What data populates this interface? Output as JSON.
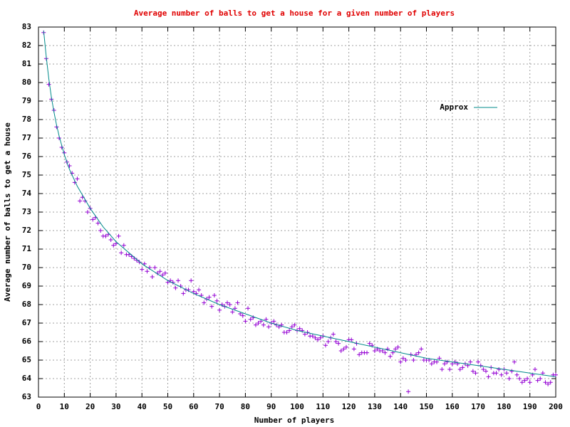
{
  "chart_data": {
    "type": "scatter",
    "title": "Average number of balls to get a house for a given number of players",
    "x_label": "Number of players",
    "y_label": "Average number of balls to get a house",
    "xlim": [
      0,
      200
    ],
    "ylim": [
      63,
      83
    ],
    "xticks": [
      0,
      10,
      20,
      30,
      40,
      50,
      60,
      70,
      80,
      90,
      100,
      110,
      120,
      130,
      140,
      150,
      160,
      170,
      180,
      190,
      200
    ],
    "yticks": [
      63,
      64,
      65,
      66,
      67,
      68,
      69,
      70,
      71,
      72,
      73,
      74,
      75,
      76,
      77,
      78,
      79,
      80,
      81,
      82,
      83
    ],
    "grid": true,
    "legend_position": "upper right",
    "points": {
      "color": "#9400d3",
      "x": [
        2,
        3,
        4,
        5,
        6,
        7,
        8,
        9,
        10,
        11,
        12,
        13,
        14,
        15,
        16,
        17,
        18,
        19,
        20,
        21,
        22,
        23,
        24,
        25,
        26,
        27,
        28,
        29,
        30,
        31,
        32,
        33,
        34,
        35,
        36,
        37,
        38,
        39,
        40,
        41,
        42,
        43,
        44,
        45,
        46,
        47,
        48,
        49,
        50,
        51,
        52,
        53,
        54,
        55,
        56,
        57,
        58,
        59,
        60,
        61,
        62,
        63,
        64,
        65,
        66,
        67,
        68,
        69,
        70,
        71,
        72,
        73,
        74,
        75,
        76,
        77,
        78,
        79,
        80,
        81,
        82,
        83,
        84,
        85,
        86,
        87,
        88,
        89,
        90,
        91,
        92,
        93,
        94,
        95,
        96,
        97,
        98,
        99,
        100,
        101,
        102,
        103,
        104,
        105,
        106,
        107,
        108,
        109,
        110,
        111,
        112,
        113,
        114,
        115,
        116,
        117,
        118,
        119,
        120,
        121,
        122,
        123,
        124,
        125,
        126,
        127,
        128,
        129,
        130,
        131,
        132,
        133,
        134,
        135,
        136,
        137,
        138,
        139,
        140,
        141,
        142,
        143,
        144,
        145,
        146,
        147,
        148,
        149,
        150,
        151,
        152,
        153,
        154,
        155,
        156,
        157,
        158,
        159,
        160,
        161,
        162,
        163,
        164,
        165,
        166,
        167,
        168,
        169,
        170,
        171,
        172,
        173,
        174,
        175,
        176,
        177,
        178,
        179,
        180,
        181,
        182,
        183,
        184,
        185,
        186,
        187,
        188,
        189,
        190,
        191,
        192,
        193,
        194,
        195,
        196,
        197,
        198,
        199,
        200
      ],
      "values": [
        82.7,
        81.3,
        79.9,
        79.1,
        78.5,
        77.6,
        77.0,
        76.5,
        76.2,
        75.7,
        75.5,
        75.1,
        74.6,
        74.8,
        73.6,
        73.8,
        73.6,
        73.0,
        73.2,
        72.6,
        72.7,
        72.4,
        72.0,
        71.7,
        71.7,
        71.8,
        71.5,
        71.2,
        71.3,
        71.7,
        70.8,
        71.2,
        70.7,
        70.7,
        70.6,
        70.5,
        70.4,
        70.3,
        69.9,
        70.2,
        69.8,
        70.0,
        69.5,
        70.0,
        69.7,
        69.8,
        69.6,
        69.7,
        69.2,
        69.3,
        69.2,
        68.9,
        69.3,
        69.0,
        68.6,
        68.8,
        68.8,
        69.3,
        68.7,
        68.6,
        68.8,
        68.5,
        68.1,
        68.3,
        68.4,
        67.9,
        68.5,
        68.2,
        67.7,
        68.0,
        67.9,
        68.1,
        68.0,
        67.6,
        67.8,
        68.1,
        67.5,
        67.4,
        67.1,
        67.8,
        67.2,
        67.3,
        66.9,
        67.0,
        67.1,
        66.9,
        67.2,
        66.8,
        67.0,
        67.1,
        66.9,
        66.8,
        66.9,
        66.5,
        66.5,
        66.6,
        66.8,
        66.9,
        66.6,
        66.7,
        66.6,
        66.4,
        66.5,
        66.3,
        66.3,
        66.2,
        66.1,
        66.2,
        66.3,
        65.8,
        66.0,
        66.2,
        66.4,
        66.0,
        65.9,
        65.5,
        65.6,
        65.7,
        66.1,
        66.1,
        65.6,
        65.9,
        65.3,
        65.4,
        65.4,
        65.4,
        65.9,
        65.8,
        65.5,
        65.6,
        65.5,
        65.5,
        65.4,
        65.6,
        65.2,
        65.4,
        65.6,
        65.7,
        64.9,
        65.1,
        65.0,
        63.3,
        65.3,
        65.0,
        65.3,
        65.4,
        65.6,
        65.0,
        65.0,
        65.0,
        64.8,
        64.9,
        64.9,
        65.1,
        64.5,
        64.8,
        64.9,
        64.5,
        64.8,
        64.9,
        64.8,
        64.5,
        64.6,
        64.8,
        64.7,
        64.9,
        64.4,
        64.3,
        64.9,
        64.7,
        64.5,
        64.4,
        64.1,
        64.6,
        64.3,
        64.3,
        64.5,
        64.2,
        64.5,
        64.3,
        64.0,
        64.4,
        64.9,
        64.2,
        64.0,
        63.8,
        63.9,
        64.0,
        63.8,
        64.2,
        64.5,
        63.9,
        64.0,
        64.3,
        63.8,
        63.7,
        63.8,
        64.2,
        64.2
      ]
    },
    "series": [
      {
        "name": "Approx",
        "color": "#008b8b",
        "x": [
          2,
          3,
          4,
          5,
          6,
          7,
          8,
          10,
          12,
          15,
          20,
          25,
          30,
          40,
          50,
          60,
          70,
          80,
          90,
          100,
          110,
          120,
          130,
          140,
          150,
          160,
          170,
          180,
          190,
          200
        ],
        "values": [
          82.8,
          81.4,
          80.2,
          79.2,
          78.4,
          77.7,
          77.1,
          76.1,
          75.3,
          74.4,
          73.2,
          72.2,
          71.4,
          70.2,
          69.3,
          68.6,
          68.0,
          67.5,
          67.0,
          66.6,
          66.3,
          66.0,
          65.7,
          65.4,
          65.1,
          64.9,
          64.7,
          64.5,
          64.3,
          64.1
        ]
      }
    ]
  }
}
